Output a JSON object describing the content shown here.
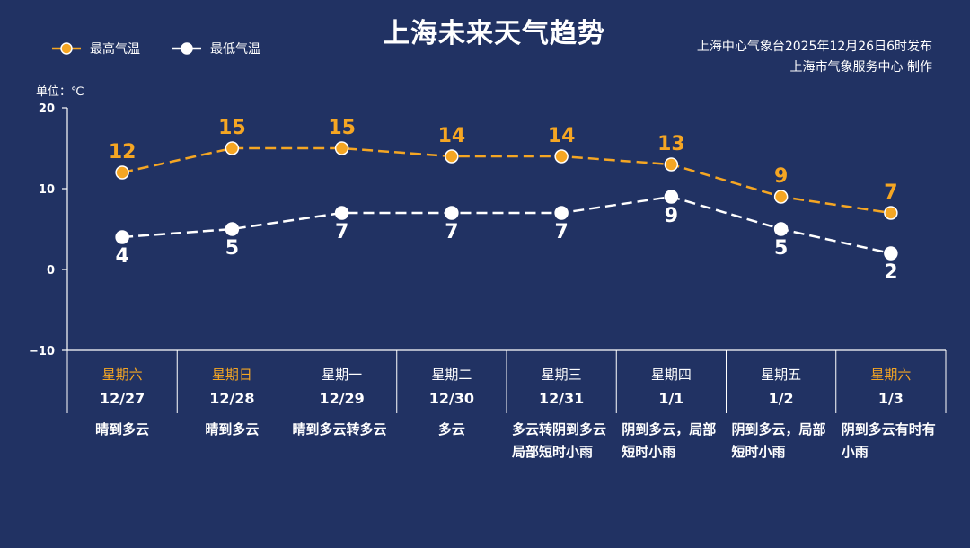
{
  "title": "上海未来天气趋势",
  "legend": {
    "high": "最高气温",
    "low": "最低气温"
  },
  "source_line1": "上海中心气象台2025年12月26日6时发布",
  "source_line2": "上海市气象服务中心  制作",
  "unit_label": "单位：℃",
  "colors": {
    "background": "#213263",
    "high": "#f5a623",
    "low": "#ffffff",
    "weekend": "#f5a623"
  },
  "chart_data": {
    "type": "line",
    "categories": [
      "12/27",
      "12/28",
      "12/29",
      "12/30",
      "12/31",
      "1/1",
      "1/2",
      "1/3"
    ],
    "series": [
      {
        "name": "最高气温",
        "values": [
          12,
          15,
          15,
          14,
          14,
          13,
          9,
          7
        ]
      },
      {
        "name": "最低气温",
        "values": [
          4,
          5,
          7,
          7,
          7,
          9,
          5,
          2
        ]
      }
    ],
    "ylim": [
      -10,
      20
    ],
    "yticks": [
      "20",
      "10",
      "0",
      "−10"
    ],
    "ylabel": "单位：℃",
    "legend_position": "top-left",
    "grid": false
  },
  "days": [
    {
      "weekday": "星期六",
      "date": "12/27",
      "weather": "晴到多云",
      "weekend": true
    },
    {
      "weekday": "星期日",
      "date": "12/28",
      "weather": "晴到多云",
      "weekend": true
    },
    {
      "weekday": "星期一",
      "date": "12/29",
      "weather": "晴到多云转多云",
      "weekend": false
    },
    {
      "weekday": "星期二",
      "date": "12/30",
      "weather": "多云",
      "weekend": false
    },
    {
      "weekday": "星期三",
      "date": "12/31",
      "weather": "多云转阴到多云局部短时小雨",
      "weekend": false
    },
    {
      "weekday": "星期四",
      "date": "1/1",
      "weather": "阴到多云，局部短时小雨",
      "weekend": false
    },
    {
      "weekday": "星期五",
      "date": "1/2",
      "weather": "阴到多云，局部短时小雨",
      "weekend": false
    },
    {
      "weekday": "星期六",
      "date": "1/3",
      "weather": "阴到多云有时有小雨",
      "weekend": true
    }
  ]
}
